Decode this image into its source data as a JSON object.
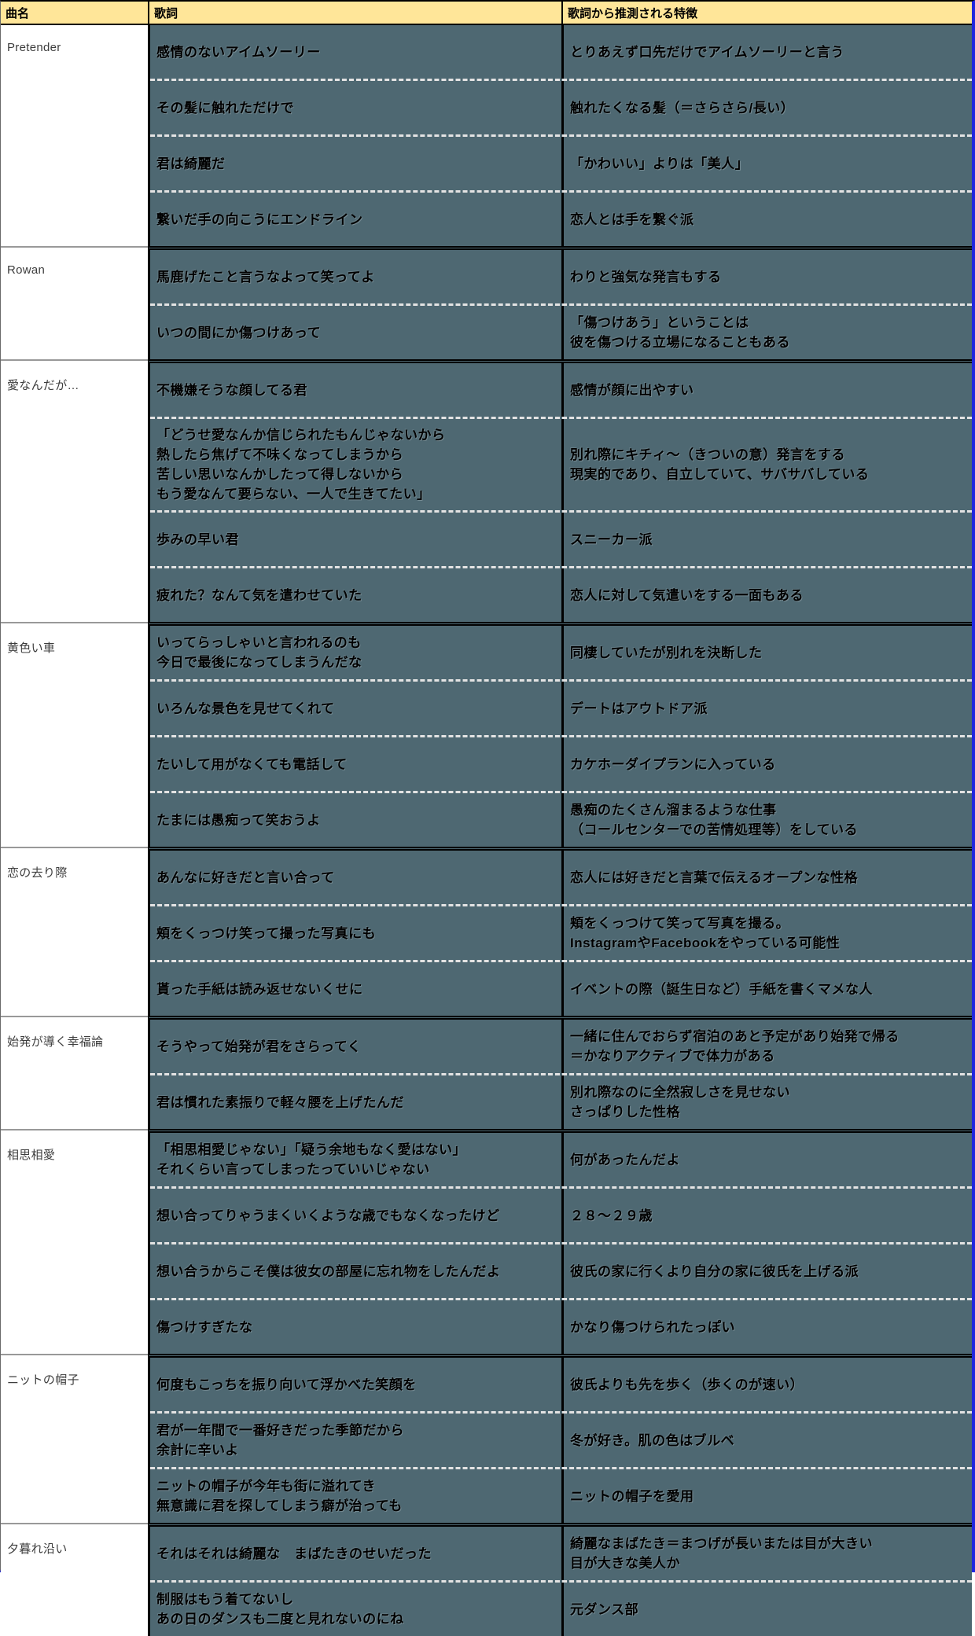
{
  "table": {
    "columns": [
      "曲名",
      "歌詞",
      "歌詞から推測される特徴"
    ],
    "sections": [
      {
        "song": "Pretender",
        "rows": [
          {
            "lyric": "感情のないアイムソーリー",
            "feature": "とりあえず口先だけでアイムソーリーと言う"
          },
          {
            "lyric": "その髪に触れただけで",
            "feature": "触れたくなる髪（＝さらさら/長い）"
          },
          {
            "lyric": "君は綺麗だ",
            "feature": "「かわいい」よりは「美人」"
          },
          {
            "lyric": "繋いだ手の向こうにエンドライン",
            "feature": "恋人とは手を繋ぐ派"
          }
        ]
      },
      {
        "song": "Rowan",
        "rows": [
          {
            "lyric": "馬鹿げたこと言うなよって笑ってよ",
            "feature": "わりと強気な発言もする"
          },
          {
            "lyric": "いつの間にか傷つけあって",
            "feature": "「傷つけあう」ということは\n彼を傷つける立場になることもある"
          }
        ]
      },
      {
        "song": "愛なんだが…",
        "rows": [
          {
            "lyric": "不機嫌そうな顔してる君",
            "feature": "感情が顔に出やすい"
          },
          {
            "lyric": "「どうせ愛なんか信じられたもんじゃないから\n熱したら焦げて不味くなってしまうから\n苦しい思いなんかしたって得しないから\nもう愛なんて要らない、一人で生きてたい」",
            "feature": "別れ際にキチィ～（きついの意）発言をする\n現実的であり、自立していて、サバサバしている"
          },
          {
            "lyric": "歩みの早い君",
            "feature": "スニーカー派"
          },
          {
            "lyric": "疲れた？なんて気を遣わせていた",
            "feature": "恋人に対して気遣いをする一面もある"
          }
        ]
      },
      {
        "song": "黄色い車",
        "rows": [
          {
            "lyric": "いってらっしゃいと言われるのも\n今日で最後になってしまうんだな",
            "feature": "同棲していたが別れを決断した"
          },
          {
            "lyric": "いろんな景色を見せてくれて",
            "feature": "デートはアウトドア派"
          },
          {
            "lyric": "たいして用がなくても電話して",
            "feature": "カケホーダイプランに入っている"
          },
          {
            "lyric": "たまには愚痴って笑おうよ",
            "feature": "愚痴のたくさん溜まるような仕事\n（コールセンターでの苦情処理等）をしている"
          }
        ]
      },
      {
        "song": "恋の去り際",
        "rows": [
          {
            "lyric": "あんなに好きだと言い合って",
            "feature": "恋人には好きだと言葉で伝えるオープンな性格"
          },
          {
            "lyric": "頬をくっつけ笑って撮った写真にも",
            "feature": "頬をくっつけて笑って写真を撮る。\nInstagramやFacebookをやっている可能性"
          },
          {
            "lyric": "貰った手紙は読み返せないくせに",
            "feature": "イベントの際（誕生日など）手紙を書くマメな人"
          }
        ]
      },
      {
        "song": "始発が導く幸福論",
        "rows": [
          {
            "lyric": "そうやって始発が君をさらってく",
            "feature": "一緒に住んでおらず宿泊のあと予定があり始発で帰る\n＝かなりアクティブで体力がある"
          },
          {
            "lyric": "君は慣れた素振りで軽々腰を上げたんだ",
            "feature": "別れ際なのに全然寂しさを見せない\nさっぱりした性格"
          }
        ]
      },
      {
        "song": "相思相愛",
        "rows": [
          {
            "lyric": "「相思相愛じゃない」「疑う余地もなく愛はない」\nそれくらい言ってしまったっていいじゃない",
            "feature": "何があったんだよ"
          },
          {
            "lyric": "想い合ってりゃうまくいくような歳でもなくなったけど",
            "feature": "２８～２９歳"
          },
          {
            "lyric": "想い合うからこそ僕は彼女の部屋に忘れ物をしたんだよ",
            "feature": "彼氏の家に行くより自分の家に彼氏を上げる派"
          },
          {
            "lyric": "傷つけすぎたな",
            "feature": "かなり傷つけられたっぽい"
          }
        ]
      },
      {
        "song": "ニットの帽子",
        "rows": [
          {
            "lyric": "何度もこっちを振り向いて浮かべた笑顔を",
            "feature": "彼氏よりも先を歩く（歩くのが速い）"
          },
          {
            "lyric": "君が一年間で一番好きだった季節だから\n余計に辛いよ",
            "feature": "冬が好き。肌の色はブルベ"
          },
          {
            "lyric": "ニットの帽子が今年も街に溢れてき\n無意識に君を探してしまう癖が治っても",
            "feature": "ニットの帽子を愛用"
          }
        ]
      },
      {
        "song": "夕暮れ沿い",
        "rows": [
          {
            "lyric": "それはそれは綺麗な　まばたきのせいだった",
            "feature": "綺麗なまばたき＝まつげが長いまたは目が大きい\n目が大きな美人か"
          },
          {
            "lyric": "制服はもう着てないし\nあの日のダンスも二度と見れないのにね",
            "feature": "元ダンス部"
          }
        ]
      }
    ]
  },
  "colors": {
    "header_bg": "#FFE699",
    "cell_bg": "#4E6872",
    "selection_border": "#2126DE",
    "section_line": "#999999"
  }
}
